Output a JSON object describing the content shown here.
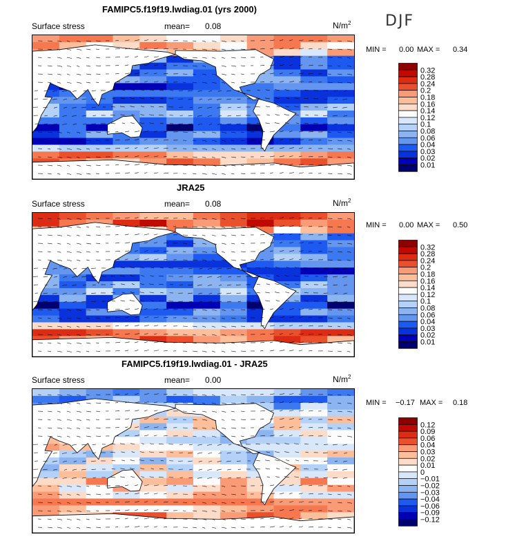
{
  "season": "DJF",
  "colors": [
    "#00006e",
    "#0000b4",
    "#0a32dc",
    "#1e5af0",
    "#3c78f0",
    "#6496f0",
    "#8cb4f0",
    "#b4d2f8",
    "#d8e8fa",
    "#fcfcfc",
    "#fcdcc8",
    "#fcbe9b",
    "#fa9b78",
    "#f57850",
    "#eb502d",
    "#dc2d14",
    "#be0a00",
    "#8c0000"
  ],
  "chart_data": [
    {
      "type": "heatmap",
      "title": "FAMIPC5.f19f19.lwdiag.01 (yrs 2000)",
      "variable": "Surface stress",
      "mean_label": "mean=",
      "mean": "0.08",
      "units": "N/m",
      "units_sup": "2",
      "min_label": "MIN =",
      "min": "0.00",
      "max_label": "MAX =",
      "max": "0.34",
      "colorbar_levels": [
        "0.32",
        "0.28",
        "0.24",
        "0.2",
        "0.18",
        "0.16",
        "0.14",
        "0.12",
        "0.1",
        "0.08",
        "0.06",
        "0.04",
        "0.03",
        "0.02",
        "0.01"
      ],
      "profile": [
        0.22,
        0.22,
        0.2,
        0.08,
        0.07,
        0.08,
        0.09,
        0.06,
        0.05,
        0.07,
        0.1,
        0.12,
        0.08,
        0.04,
        0.08,
        0.06,
        0.16,
        0.24,
        0.24,
        0.18,
        0.14
      ]
    },
    {
      "type": "heatmap",
      "title": "JRA25",
      "variable": "Surface stress",
      "mean_label": "mean=",
      "mean": "0.08",
      "units": "N/m",
      "units_sup": "2",
      "min_label": "MIN =",
      "min": "0.00",
      "max_label": "MAX =",
      "max": "0.50",
      "colorbar_levels": [
        "0.32",
        "0.28",
        "0.24",
        "0.2",
        "0.18",
        "0.16",
        "0.14",
        "0.12",
        "0.1",
        "0.08",
        "0.06",
        "0.04",
        "0.03",
        "0.02",
        "0.01"
      ],
      "profile": [
        0.26,
        0.28,
        0.22,
        0.09,
        0.08,
        0.09,
        0.1,
        0.07,
        0.06,
        0.08,
        0.1,
        0.12,
        0.08,
        0.04,
        0.08,
        0.07,
        0.17,
        0.26,
        0.26,
        0.2,
        0.15
      ]
    },
    {
      "type": "heatmap",
      "title": "FAMIPC5.f19f19.lwdiag.01 - JRA25",
      "variable": "Surface stress",
      "mean_label": "mean=",
      "mean": "0.00",
      "units": "N/m",
      "units_sup": "2",
      "min_label": "MIN =",
      "min": "−0.17",
      "max_label": "MAX =",
      "max": "0.18",
      "colorbar_levels": [
        "0.12",
        "0.09",
        "0.06",
        "0.04",
        "0.03",
        "0.02",
        "0.01",
        "0",
        "−0.01",
        "−0.02",
        "−0.03",
        "−0.04",
        "−0.06",
        "−0.09",
        "−0.12"
      ],
      "profile": [
        -0.03,
        -0.05,
        -0.03,
        0.0,
        0.01,
        0.0,
        -0.01,
        0.0,
        0.02,
        0.0,
        -0.01,
        0.0,
        0.01,
        0.03,
        0.02,
        0.02,
        0.04,
        0.03,
        0.05,
        0.03,
        0.0
      ]
    }
  ]
}
